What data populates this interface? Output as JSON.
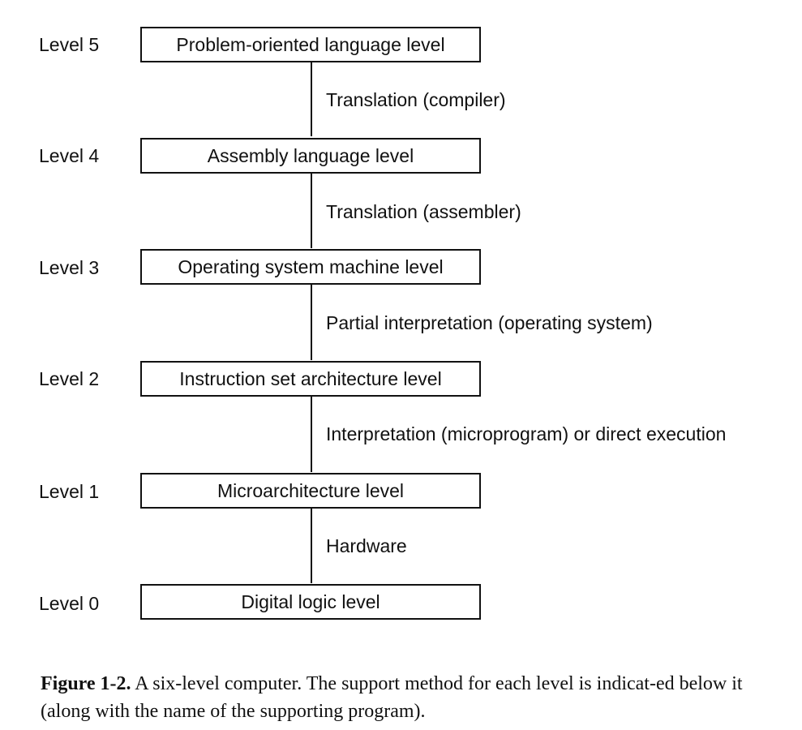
{
  "levels": [
    {
      "label": "Level 5",
      "name": "Problem-oriented language level"
    },
    {
      "label": "Level 4",
      "name": "Assembly language level"
    },
    {
      "label": "Level 3",
      "name": "Operating system machine level"
    },
    {
      "label": "Level 2",
      "name": "Instruction set architecture level"
    },
    {
      "label": "Level 1",
      "name": "Microarchitecture level"
    },
    {
      "label": "Level 0",
      "name": "Digital logic level"
    }
  ],
  "methods": [
    "Translation (compiler)",
    "Translation (assembler)",
    "Partial interpretation (operating system)",
    "Interpretation (microprogram) or direct execution",
    "Hardware"
  ],
  "caption": {
    "figure_number": "Figure 1-2.",
    "text": "A six-level computer.  The support method for each level is indicat-ed below it (along with the name of the supporting program)."
  }
}
